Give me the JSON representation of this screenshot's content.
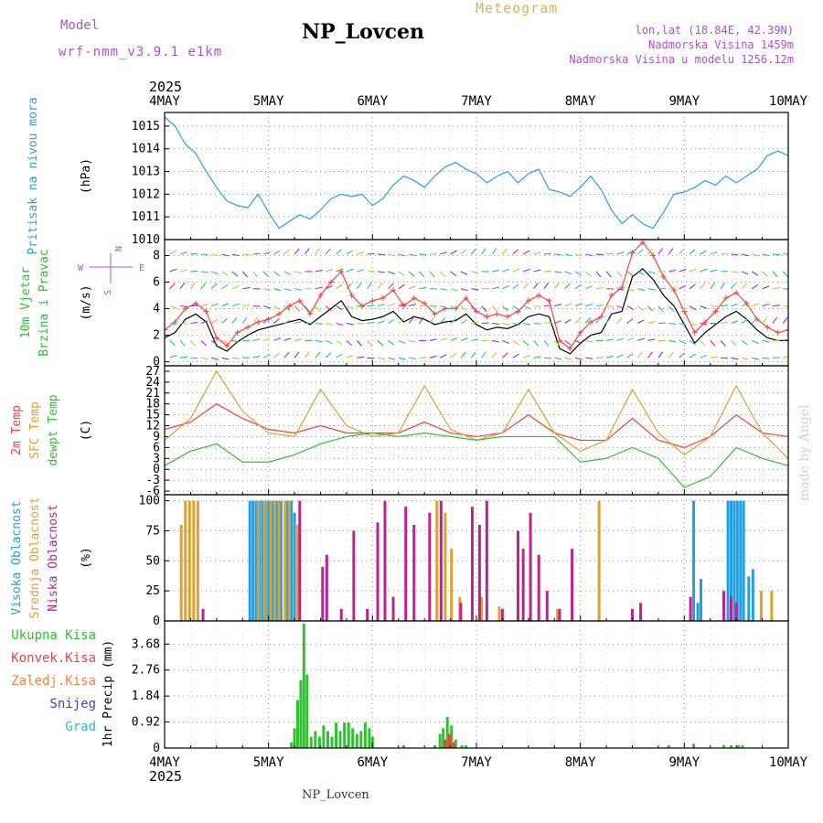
{
  "header": {
    "model_label": "Model",
    "model_name": "wrf-nmm_v3.9.1 e1km",
    "title": "NP_Lovcen",
    "meteogram_label": "Meteogram",
    "lonlat": "lon,lat (18.84E, 42.39N)",
    "altitude": "Nadmorska Visina 1459m",
    "model_altitude": "Nadmorska Visina u modelu 1256.12m"
  },
  "footer": {
    "station": "NP_Lovcen"
  },
  "watermark": "made by Angel",
  "time_axis": {
    "year": "2025",
    "labels": [
      "4MAY",
      "5MAY",
      "6MAY",
      "7MAY",
      "8MAY",
      "9MAY",
      "10MAY"
    ]
  },
  "chart_data": [
    {
      "type": "line",
      "id": "pressure",
      "ylabel_lines": [
        "Pritisak na nivou mora"
      ],
      "unit": "(hPa)",
      "ylim": [
        1010,
        1015.6
      ],
      "yticks": [
        1010,
        1011,
        1012,
        1013,
        1014,
        1015
      ],
      "grid": true,
      "series": [
        {
          "color": "#2aa0e0",
          "x": [
            0,
            0.1,
            0.2,
            0.3,
            0.4,
            0.5,
            0.6,
            0.7,
            0.8,
            0.9,
            1.0,
            1.1,
            1.2,
            1.3,
            1.4,
            1.5,
            1.6,
            1.7,
            1.8,
            1.9,
            2.0,
            2.1,
            2.2,
            2.3,
            2.4,
            2.5,
            2.6,
            2.7,
            2.8,
            2.9,
            3.0,
            3.1,
            3.2,
            3.3,
            3.4,
            3.5,
            3.6,
            3.7,
            3.8,
            3.9,
            4.0,
            4.1,
            4.2,
            4.3,
            4.4,
            4.5,
            4.6,
            4.7,
            4.8,
            4.9,
            5.0,
            5.1,
            5.2,
            5.3,
            5.4,
            5.5,
            5.6,
            5.7,
            5.8,
            5.9,
            6.0
          ],
          "values": [
            1015.4,
            1015.0,
            1014.2,
            1013.8,
            1013.0,
            1012.3,
            1011.7,
            1011.5,
            1011.4,
            1012.0,
            1011.2,
            1010.5,
            1010.8,
            1011.1,
            1010.9,
            1011.3,
            1011.8,
            1012.0,
            1011.9,
            1012.0,
            1011.5,
            1011.8,
            1012.4,
            1012.8,
            1012.6,
            1012.3,
            1012.8,
            1013.2,
            1013.4,
            1013.1,
            1012.9,
            1012.5,
            1012.8,
            1013.0,
            1012.5,
            1012.9,
            1013.1,
            1012.2,
            1012.1,
            1011.9,
            1012.3,
            1012.8,
            1012.2,
            1011.3,
            1010.7,
            1011.1,
            1010.7,
            1010.5,
            1011.2,
            1012.0,
            1012.1,
            1012.3,
            1012.6,
            1012.4,
            1012.8,
            1012.5,
            1012.8,
            1013.1,
            1013.7,
            1013.9,
            1013.7
          ]
        }
      ]
    },
    {
      "type": "line",
      "id": "wind",
      "ylabel_lines": [
        "10m Vjetar",
        "Brzina i Pravac"
      ],
      "unit": "(m/s)",
      "compass": {
        "n": "N",
        "w": "W",
        "e": "E",
        "s": "S"
      },
      "ylim": [
        -0.3,
        9.2
      ],
      "yticks": [
        0,
        2,
        4,
        6,
        8
      ],
      "grid": true,
      "series": [
        {
          "name": "speed",
          "color": "#000000",
          "x": [
            0,
            0.1,
            0.2,
            0.3,
            0.4,
            0.5,
            0.6,
            0.7,
            0.8,
            0.9,
            1.0,
            1.1,
            1.2,
            1.3,
            1.4,
            1.5,
            1.6,
            1.7,
            1.8,
            1.9,
            2.0,
            2.1,
            2.2,
            2.3,
            2.4,
            2.5,
            2.6,
            2.7,
            2.8,
            2.9,
            3.0,
            3.1,
            3.2,
            3.3,
            3.4,
            3.5,
            3.6,
            3.7,
            3.8,
            3.9,
            4.0,
            4.1,
            4.2,
            4.3,
            4.4,
            4.5,
            4.6,
            4.7,
            4.8,
            4.9,
            5.0,
            5.1,
            5.2,
            5.3,
            5.4,
            5.5,
            5.6,
            5.7,
            5.8,
            5.9,
            6.0
          ],
          "values": [
            1.8,
            2.2,
            3.2,
            3.6,
            3.0,
            1.2,
            0.8,
            1.5,
            2.0,
            2.4,
            2.6,
            2.8,
            3.0,
            3.2,
            2.8,
            3.4,
            4.0,
            4.6,
            3.4,
            3.1,
            3.2,
            3.4,
            3.8,
            3.0,
            3.4,
            3.2,
            2.8,
            3.0,
            3.1,
            3.6,
            2.8,
            2.4,
            2.6,
            2.5,
            2.8,
            3.4,
            3.6,
            3.4,
            1.0,
            0.6,
            1.4,
            2.0,
            2.2,
            3.6,
            3.8,
            6.4,
            7.0,
            6.2,
            5.0,
            4.2,
            2.8,
            1.4,
            2.2,
            2.8,
            3.4,
            3.8,
            3.2,
            2.4,
            1.8,
            1.6,
            1.6
          ]
        },
        {
          "name": "gust",
          "color": "#ff4040",
          "x": [
            0,
            0.1,
            0.2,
            0.3,
            0.4,
            0.5,
            0.6,
            0.7,
            0.8,
            0.9,
            1.0,
            1.1,
            1.2,
            1.3,
            1.4,
            1.5,
            1.6,
            1.7,
            1.8,
            1.9,
            2.0,
            2.1,
            2.2,
            2.3,
            2.4,
            2.5,
            2.6,
            2.7,
            2.8,
            2.9,
            3.0,
            3.1,
            3.2,
            3.3,
            3.4,
            3.5,
            3.6,
            3.7,
            3.8,
            3.9,
            4.0,
            4.1,
            4.2,
            4.3,
            4.4,
            4.5,
            4.6,
            4.7,
            4.8,
            4.9,
            5.0,
            5.1,
            5.2,
            5.3,
            5.4,
            5.5,
            5.6,
            5.7,
            5.8,
            5.9,
            6.0
          ],
          "values": [
            2.4,
            3.0,
            4.0,
            4.4,
            3.8,
            1.8,
            1.2,
            2.2,
            2.6,
            3.0,
            3.2,
            3.6,
            4.2,
            4.6,
            3.6,
            5.0,
            6.0,
            6.8,
            5.0,
            4.2,
            4.6,
            4.8,
            5.4,
            4.2,
            4.8,
            4.4,
            3.6,
            4.0,
            4.0,
            4.8,
            3.8,
            3.4,
            3.6,
            3.4,
            3.8,
            4.6,
            5.0,
            4.6,
            1.6,
            1.0,
            2.2,
            3.0,
            3.4,
            5.0,
            5.6,
            8.2,
            9.0,
            8.0,
            6.4,
            5.4,
            3.8,
            2.2,
            3.0,
            3.8,
            4.8,
            5.2,
            4.4,
            3.2,
            2.6,
            2.2,
            2.4
          ]
        }
      ]
    },
    {
      "type": "line",
      "id": "temperature",
      "ylabel_lines": [
        "2m Temp",
        "SFC Temp",
        "dewpt Temp"
      ],
      "unit": "(C)",
      "ylim": [
        -7,
        28.5
      ],
      "yticks": [
        -6,
        -3,
        0,
        3,
        6,
        9,
        12,
        15,
        18,
        21,
        24,
        27
      ],
      "grid": true,
      "series": [
        {
          "name": "2m Temp",
          "color": "#f04040",
          "x": [
            0,
            0.25,
            0.5,
            0.75,
            1.0,
            1.25,
            1.5,
            1.75,
            2.0,
            2.25,
            2.5,
            2.75,
            3.0,
            3.25,
            3.5,
            3.75,
            4.0,
            4.25,
            4.5,
            4.75,
            5.0,
            5.25,
            5.5,
            5.75,
            6.0
          ],
          "values": [
            11,
            13,
            18,
            14,
            11,
            10,
            12,
            10,
            10,
            10,
            13,
            10,
            9,
            10,
            15,
            10,
            8,
            8,
            14,
            8,
            6,
            9,
            15,
            10,
            9
          ]
        },
        {
          "name": "SFC Temp",
          "color": "#e0a030",
          "x": [
            0,
            0.25,
            0.5,
            0.75,
            1.0,
            1.25,
            1.5,
            1.75,
            2.0,
            2.25,
            2.5,
            2.75,
            3.0,
            3.25,
            3.5,
            3.75,
            4.0,
            4.25,
            4.5,
            4.75,
            5.0,
            5.25,
            5.5,
            5.75,
            6.0
          ],
          "values": [
            8,
            14,
            27,
            16,
            10,
            9,
            22,
            12,
            9,
            10,
            23,
            11,
            8,
            10,
            22,
            10,
            5,
            8,
            22,
            10,
            4,
            9,
            23,
            10,
            3
          ]
        },
        {
          "name": "dewpt Temp",
          "color": "#30c030",
          "x": [
            0,
            0.25,
            0.5,
            0.75,
            1.0,
            1.25,
            1.5,
            1.75,
            2.0,
            2.25,
            2.5,
            2.75,
            3.0,
            3.25,
            3.5,
            3.75,
            4.0,
            4.25,
            4.5,
            4.75,
            5.0,
            5.25,
            5.5,
            5.75,
            6.0
          ],
          "values": [
            1,
            5,
            7,
            2,
            2,
            4,
            7,
            9,
            10,
            9,
            10,
            9,
            8,
            9,
            9,
            9,
            2,
            3,
            6,
            3,
            -5,
            -2,
            6,
            3,
            1
          ]
        }
      ]
    },
    {
      "type": "bar",
      "id": "clouds",
      "ylabel_lines": [
        "Visoka Oblacnost",
        "Srednja Oblacnost",
        "Niska Oblacnost"
      ],
      "unit": "(%)",
      "ylim": [
        0,
        105
      ],
      "yticks": [
        0,
        25,
        50,
        75,
        100
      ],
      "grid": true,
      "series": [
        {
          "name": "Visoka Oblacnost",
          "color": "#20a0e0",
          "x": [
            0.82,
            0.85,
            0.88,
            0.91,
            0.94,
            0.97,
            1.0,
            1.04,
            1.08,
            1.12,
            1.18,
            1.22,
            1.25,
            5.09,
            5.13,
            5.16,
            5.42,
            5.45,
            5.48,
            5.51,
            5.54,
            5.57,
            5.62,
            5.66
          ],
          "values": [
            100,
            100,
            100,
            100,
            100,
            100,
            100,
            100,
            100,
            100,
            100,
            100,
            90,
            100,
            15,
            35,
            100,
            100,
            100,
            100,
            100,
            100,
            37,
            43
          ]
        },
        {
          "name": "Srednja Oblacnost",
          "color": "#e0a030",
          "x": [
            0.16,
            0.2,
            0.24,
            0.28,
            0.32,
            0.9,
            0.96,
            1.02,
            1.06,
            1.1,
            1.16,
            1.2,
            1.28,
            2.62,
            2.7,
            2.76,
            2.84,
            3.05,
            3.22,
            3.78,
            4.18,
            5.74,
            5.84
          ],
          "values": [
            80,
            100,
            100,
            100,
            100,
            100,
            100,
            100,
            100,
            100,
            100,
            100,
            80,
            100,
            90,
            60,
            20,
            20,
            12,
            10,
            100,
            25,
            25
          ]
        },
        {
          "name": "Niska Oblacnost",
          "color": "#c02090",
          "x": [
            0.37,
            1.3,
            1.52,
            1.56,
            1.7,
            1.82,
            1.95,
            2.05,
            2.12,
            2.2,
            2.32,
            2.4,
            2.55,
            2.66,
            2.85,
            2.96,
            3.03,
            3.1,
            3.25,
            3.4,
            3.45,
            3.52,
            3.6,
            3.68,
            3.8,
            3.92,
            4.5,
            4.58,
            5.06,
            5.38,
            5.45,
            5.5
          ],
          "values": [
            10,
            100,
            45,
            55,
            10,
            75,
            10,
            82,
            100,
            20,
            95,
            80,
            90,
            100,
            15,
            95,
            80,
            100,
            10,
            75,
            60,
            90,
            55,
            25,
            10,
            60,
            10,
            15,
            20,
            25,
            20,
            15
          ]
        }
      ]
    },
    {
      "type": "bar",
      "id": "precip",
      "ylabel_lines": [
        "1hr Precip (mm)"
      ],
      "legend": [
        "Ukupna Kisa",
        "Konvek.Kisa",
        "Zaledj.Kisa",
        "Snijeg",
        "Grad"
      ],
      "legend_colors": [
        "#30c030",
        "#f04040",
        "#ff8040",
        "#4040e0",
        "#30c0c0"
      ],
      "unit": "",
      "ylim": [
        0,
        4.5
      ],
      "yticks": [
        0,
        0.92,
        1.84,
        2.76,
        3.68
      ],
      "grid": true,
      "series": [
        {
          "name": "Ukupna Kisa",
          "color": "#30c030",
          "x": [
            1.22,
            1.25,
            1.28,
            1.31,
            1.34,
            1.37,
            1.41,
            1.45,
            1.49,
            1.53,
            1.57,
            1.61,
            1.65,
            1.69,
            1.73,
            1.77,
            1.81,
            1.85,
            1.89,
            1.93,
            1.97,
            2.0,
            2.3,
            2.6,
            2.65,
            2.68,
            2.72,
            2.76,
            2.8,
            2.86,
            2.9,
            4.85,
            5.09,
            5.38,
            5.45,
            5.52,
            5.56
          ],
          "values": [
            0.2,
            0.7,
            1.7,
            2.4,
            4.4,
            2.6,
            0.4,
            0.6,
            0.4,
            0.8,
            0.6,
            0.4,
            0.9,
            0.6,
            0.9,
            0.9,
            0.7,
            0.5,
            0.6,
            0.9,
            0.7,
            0.4,
            0.1,
            0.1,
            0.5,
            0.7,
            1.1,
            0.8,
            0.3,
            0.1,
            0.1,
            0.1,
            0.15,
            0.1,
            0.1,
            0.1,
            0.1
          ]
        },
        {
          "name": "Konvek.Kisa",
          "color": "#f04040",
          "x": [
            2.7,
            2.74,
            2.78
          ],
          "values": [
            0.3,
            0.5,
            0.2
          ]
        }
      ]
    }
  ]
}
